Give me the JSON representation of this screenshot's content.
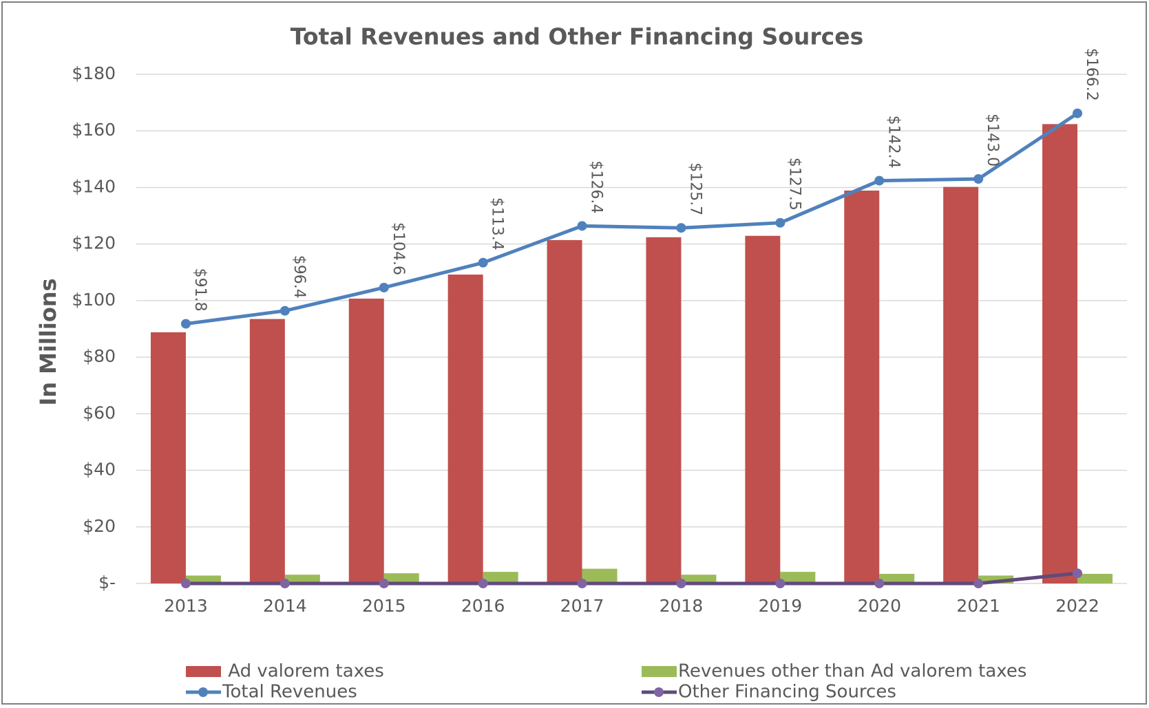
{
  "chart_data": {
    "type": "bar",
    "title": "Total Revenues and Other Financing Sources",
    "y_label": "In Millions",
    "categories": [
      "2013",
      "2014",
      "2015",
      "2016",
      "2017",
      "2018",
      "2019",
      "2020",
      "2021",
      "2022"
    ],
    "series": [
      {
        "name": " Ad valorem taxes",
        "type": "bar",
        "color": "#c0504d",
        "values": [
          88.8,
          93.5,
          100.7,
          109.2,
          121.4,
          122.4,
          122.9,
          138.9,
          140.2,
          162.4
        ]
      },
      {
        "name": "Revenues other than Ad valorem taxes",
        "type": "bar",
        "color": "#9bbb59",
        "values": [
          2.8,
          3.1,
          3.6,
          4.1,
          5.2,
          3.1,
          4.1,
          3.4,
          2.8,
          3.4
        ]
      },
      {
        "name": "Total Revenues",
        "type": "line",
        "color": "#4f81bd",
        "values": [
          91.8,
          96.4,
          104.6,
          113.4,
          126.4,
          125.7,
          127.5,
          142.4,
          143.0,
          166.2
        ],
        "value_labels": [
          "$91.8",
          "$96.4",
          "$104.6",
          "$113.4",
          "$126.4",
          "$125.7",
          "$127.5",
          "$142.4",
          "$143.0",
          "$166.2"
        ]
      },
      {
        "name": "Other Financing Sources",
        "type": "line",
        "color": "#604a7b",
        "values": [
          0,
          0,
          0,
          0,
          0,
          0,
          0,
          0,
          0,
          3.6
        ]
      }
    ],
    "ylim": [
      0,
      180
    ],
    "yticks": [
      {
        "value": 0,
        "label": "$-"
      },
      {
        "value": 20,
        "label": "$20"
      },
      {
        "value": 40,
        "label": "$40"
      },
      {
        "value": 60,
        "label": "$60"
      },
      {
        "value": 80,
        "label": "$80"
      },
      {
        "value": 100,
        "label": "$100"
      },
      {
        "value": 120,
        "label": "$120"
      },
      {
        "value": 140,
        "label": "$140"
      },
      {
        "value": 160,
        "label": "$160"
      },
      {
        "value": 180,
        "label": "$180"
      }
    ],
    "grid": true,
    "legend": "bottom"
  }
}
